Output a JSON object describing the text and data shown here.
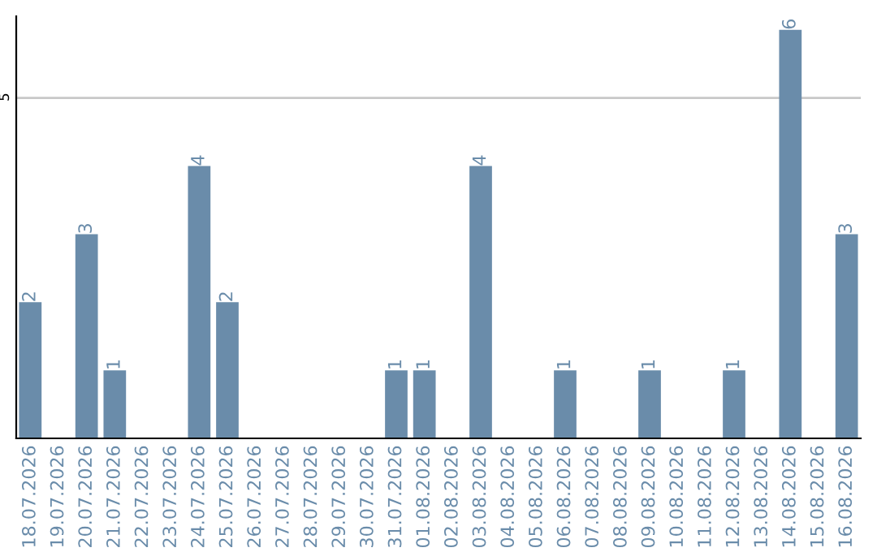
{
  "chart_data": {
    "type": "bar",
    "categories": [
      "18.07.2026",
      "19.07.2026",
      "20.07.2026",
      "21.07.2026",
      "22.07.2026",
      "23.07.2026",
      "24.07.2026",
      "25.07.2026",
      "26.07.2026",
      "27.07.2026",
      "28.07.2026",
      "29.07.2026",
      "30.07.2026",
      "31.07.2026",
      "01.08.2026",
      "02.08.2026",
      "03.08.2026",
      "04.08.2026",
      "05.08.2026",
      "06.08.2026",
      "07.08.2026",
      "08.08.2026",
      "09.08.2026",
      "10.08.2026",
      "11.08.2026",
      "12.08.2026",
      "13.08.2026",
      "14.08.2026",
      "15.08.2026",
      "16.08.2026"
    ],
    "values": [
      2,
      0,
      3,
      1,
      0,
      0,
      4,
      2,
      0,
      0,
      0,
      0,
      0,
      1,
      1,
      0,
      4,
      0,
      0,
      1,
      0,
      0,
      1,
      0,
      0,
      1,
      0,
      6,
      0,
      3
    ],
    "value_labels": [
      "2",
      null,
      "3",
      "1",
      null,
      null,
      "4",
      "2",
      null,
      null,
      null,
      null,
      null,
      "1",
      "1",
      null,
      "4",
      null,
      null,
      "1",
      null,
      null,
      "1",
      null,
      null,
      "1",
      null,
      "6",
      null,
      "3"
    ],
    "color": "#6a8caa",
    "ylim": [
      0,
      6.2
    ],
    "yticks": [
      5
    ],
    "grid": "y"
  }
}
